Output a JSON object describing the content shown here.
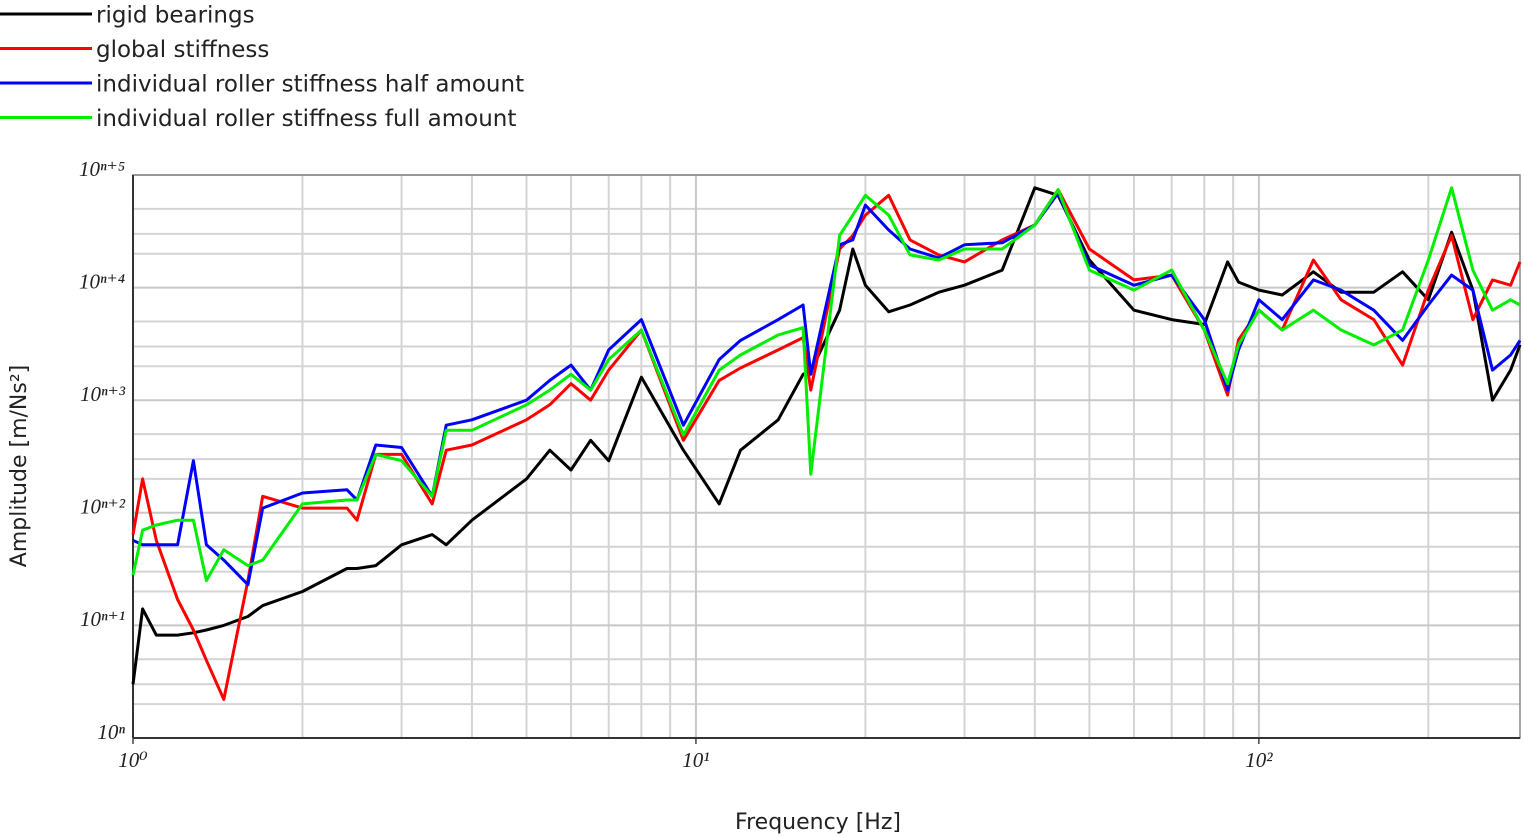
{
  "chart_data": {
    "type": "line",
    "xlabel": "Frequency [Hz]",
    "ylabel": "Amplitude [m/Ns²]",
    "xscale": "log",
    "yscale": "log",
    "xlim": [
      1,
      291
    ],
    "ylim": [
      1,
      100000
    ],
    "xticks": [
      {
        "value": 1,
        "label": "10⁰"
      },
      {
        "value": 10,
        "label": "10¹"
      },
      {
        "value": 100,
        "label": "10²"
      }
    ],
    "yticks": [
      {
        "value": 1,
        "label": "10ⁿ"
      },
      {
        "value": 10,
        "label": "10ⁿ⁺¹"
      },
      {
        "value": 100,
        "label": "10ⁿ⁺²"
      },
      {
        "value": 1000,
        "label": "10ⁿ⁺³"
      },
      {
        "value": 10000,
        "label": "10ⁿ⁺⁴"
      },
      {
        "value": 100000,
        "label": "10ⁿ⁺⁵"
      }
    ],
    "x_minor_grid": [
      2,
      3,
      4,
      5,
      6,
      7,
      8,
      9,
      20,
      30,
      40,
      50,
      60,
      70,
      80,
      90,
      200
    ],
    "y_minor_grid": [
      2,
      3,
      5,
      20,
      30,
      50,
      200,
      300,
      500,
      2000,
      3000,
      5000,
      20000,
      30000,
      50000
    ],
    "grid": true,
    "legend": "top-left",
    "x": [
      1,
      1.04,
      1.1,
      1.2,
      1.28,
      1.35,
      1.45,
      1.6,
      1.7,
      2,
      2.4,
      2.5,
      2.7,
      3,
      3.4,
      3.6,
      4,
      5,
      5.5,
      6,
      6.5,
      7,
      8,
      9.5,
      11,
      12,
      14,
      15.5,
      16,
      18,
      19,
      20,
      22,
      24,
      27,
      30,
      35,
      40,
      44,
      50,
      60,
      70,
      80,
      88,
      92,
      100,
      110,
      125,
      140,
      160,
      180,
      200,
      220,
      240,
      260,
      280,
      291
    ],
    "series": [
      {
        "name": "rigid bearings",
        "color": "#000000",
        "values": [
          3.0,
          14,
          8.2,
          8.2,
          8.6,
          9.1,
          10,
          12,
          15,
          20,
          32,
          32,
          34,
          52,
          64,
          52,
          86,
          200,
          360,
          240,
          440,
          290,
          1600,
          360,
          120,
          360,
          670,
          1700,
          1800,
          6300,
          22000,
          10500,
          6100,
          7000,
          9100,
          10500,
          14300,
          77000,
          66000,
          17600,
          6300,
          5200,
          4700,
          16900,
          11200,
          9500,
          8600,
          13800,
          9100,
          9100,
          13800,
          7800,
          31000,
          9500,
          1000,
          1850,
          3100
        ]
      },
      {
        "name": "global stiffness",
        "color": "#ff0000",
        "values": [
          64,
          200,
          57,
          17,
          9.1,
          4.9,
          2.2,
          25,
          140,
          110,
          110,
          86,
          330,
          330,
          120,
          360,
          400,
          670,
          910,
          1400,
          1000,
          1850,
          4200,
          440,
          1500,
          1930,
          2800,
          3600,
          1230,
          22000,
          29000,
          44000,
          66000,
          26500,
          19500,
          16900,
          26500,
          36000,
          74000,
          22000,
          11700,
          12900,
          4200,
          1110,
          3430,
          6300,
          4200,
          17600,
          7800,
          5200,
          2050,
          9500,
          29000,
          5200,
          11700,
          10500,
          16900
        ]
      },
      {
        "name": "individual roller stiffness half amount",
        "color": "#0000ff",
        "values": [
          57,
          52,
          52,
          52,
          290,
          52,
          38,
          23,
          110,
          150,
          160,
          130,
          400,
          380,
          140,
          600,
          670,
          1000,
          1500,
          2050,
          1230,
          2800,
          5200,
          600,
          2300,
          3400,
          5200,
          7000,
          1700,
          24000,
          26500,
          54000,
          32500,
          22000,
          18300,
          24000,
          25000,
          36000,
          69000,
          15900,
          10500,
          12900,
          5200,
          1230,
          2800,
          7800,
          5200,
          11700,
          9500,
          6300,
          3400,
          7000,
          12900,
          9500,
          1850,
          2520,
          3400
        ]
      },
      {
        "name": "individual roller stiffness full amount",
        "color": "#00ee00",
        "values": [
          28,
          70,
          78,
          86,
          86,
          25,
          47,
          34,
          38,
          120,
          130,
          130,
          330,
          290,
          140,
          540,
          540,
          910,
          1230,
          1700,
          1230,
          2300,
          4200,
          490,
          1850,
          2520,
          3800,
          4400,
          220,
          29000,
          44000,
          66000,
          44000,
          19500,
          17600,
          22000,
          22000,
          36000,
          74000,
          14300,
          9500,
          14300,
          4200,
          1400,
          3100,
          6300,
          4200,
          6300,
          4200,
          3100,
          4200,
          17600,
          77000,
          14300,
          6300,
          7800,
          7000
        ]
      }
    ]
  }
}
